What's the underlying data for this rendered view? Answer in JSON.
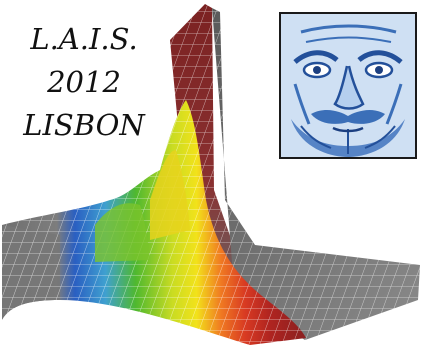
{
  "title": {
    "line1": "L.A.I.S.",
    "line2": "2012",
    "line3": "LISBON"
  },
  "colors": {
    "tile_blue": "#3b6fb8",
    "tile_light": "#dbe8f6",
    "surface_red": "#c22b22",
    "surface_orange": "#f07a22",
    "surface_yellow": "#f2e21a",
    "surface_green": "#4fb82f",
    "surface_blue": "#2a5fc2",
    "surface_gray": "#6f6f6f"
  },
  "icons": {
    "surface": "3d-surface-plot-graphic",
    "portrait": "azulejo-face-tile-icon"
  }
}
